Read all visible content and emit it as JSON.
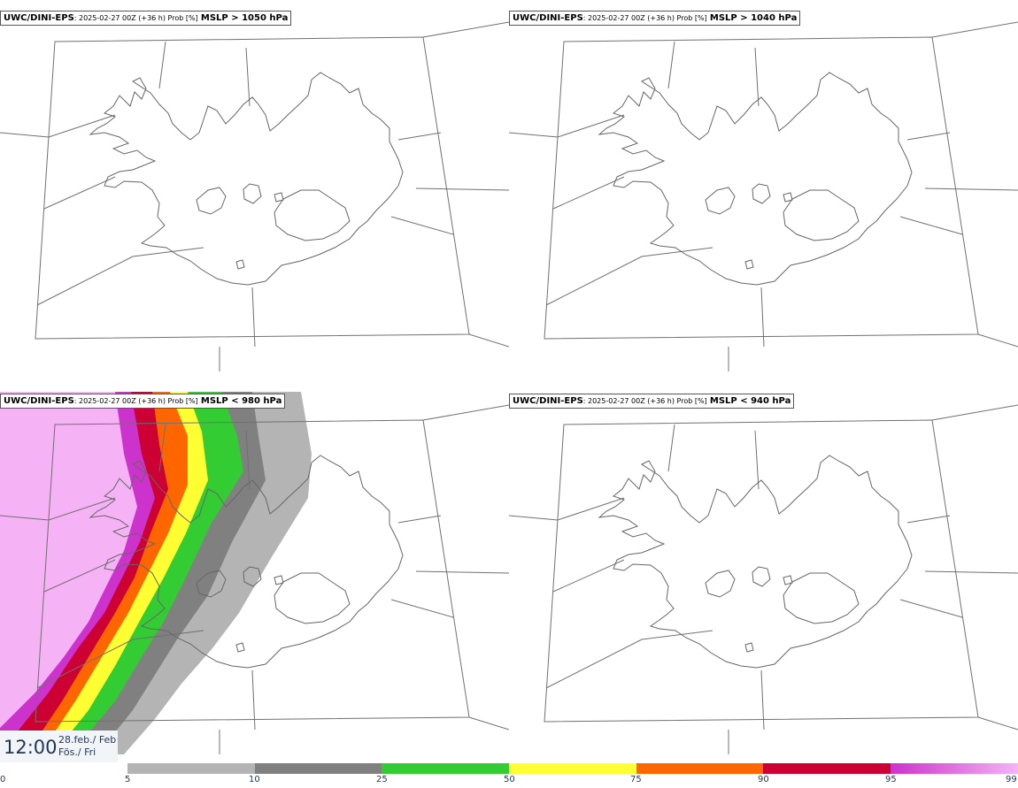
{
  "panels": [
    {
      "model": "UWC/DINI-EPS",
      "meta": ": 2025-02-27 00Z (+36 h) Prob [%]",
      "field": "MSLP > 1050 hPa"
    },
    {
      "model": "UWC/DINI-EPS",
      "meta": ": 2025-02-27 00Z (+36 h) Prob [%]",
      "field": "MSLP > 1040 hPa"
    },
    {
      "model": "UWC/DINI-EPS",
      "meta": ": 2025-02-27 00Z (+36 h) Prob [%]",
      "field": "MSLP < 980 hPa"
    },
    {
      "model": "UWC/DINI-EPS",
      "meta": ": 2025-02-27 00Z (+36 h) Prob [%]",
      "field": "MSLP < 940 hPa"
    }
  ],
  "time": {
    "clock": "12:00",
    "date_line1": "28.feb./ Feb",
    "date_line2": "Fös./ Fri"
  },
  "colorbar": {
    "ticks": [
      "0",
      "5",
      "10",
      "25",
      "50",
      "75",
      "90",
      "95",
      "99"
    ],
    "colors": [
      "#b4b4b4",
      "#808080",
      "#33cc33",
      "#ffff33",
      "#ff6600",
      "#cc0033",
      "#cc33cc",
      "#f5b3f5"
    ]
  }
}
